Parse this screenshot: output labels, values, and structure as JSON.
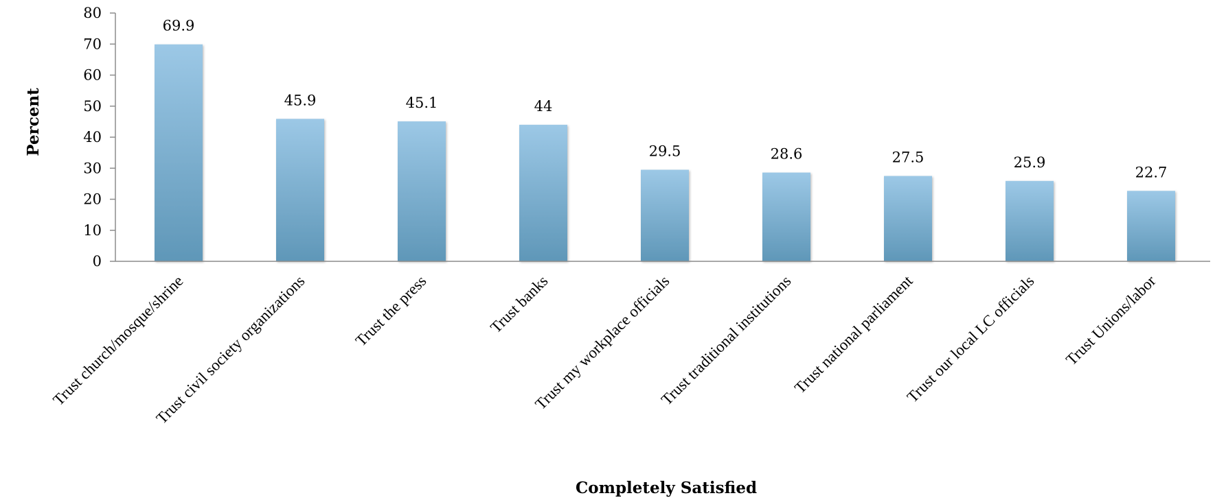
{
  "chart_data": {
    "type": "bar",
    "categories": [
      "Trust church/mosque/shrine",
      "Trust civil society organizations",
      "Trust the press",
      "Trust banks",
      "Trust my workplace officials",
      "Trust traditional institutions",
      "Trust national parliament",
      "Trust our local LC officials",
      "Trust Unions/labor"
    ],
    "values": [
      69.9,
      45.9,
      45.1,
      44,
      29.5,
      28.6,
      27.5,
      25.9,
      22.7
    ],
    "data_labels": [
      "69.9",
      "45.9",
      "45.1",
      "44",
      "29.5",
      "28.6",
      "27.5",
      "25.9",
      "22.7"
    ],
    "xlabel": "Completely Satisfied",
    "ylabel": "Percent",
    "ylim": [
      0,
      80
    ],
    "yticks": [
      0,
      10,
      20,
      30,
      40,
      50,
      60,
      70,
      80
    ],
    "grid": false,
    "legend": "none",
    "colors": {
      "bar_top": "#9cc8e6",
      "bar_bottom": "#5f97b8"
    }
  }
}
